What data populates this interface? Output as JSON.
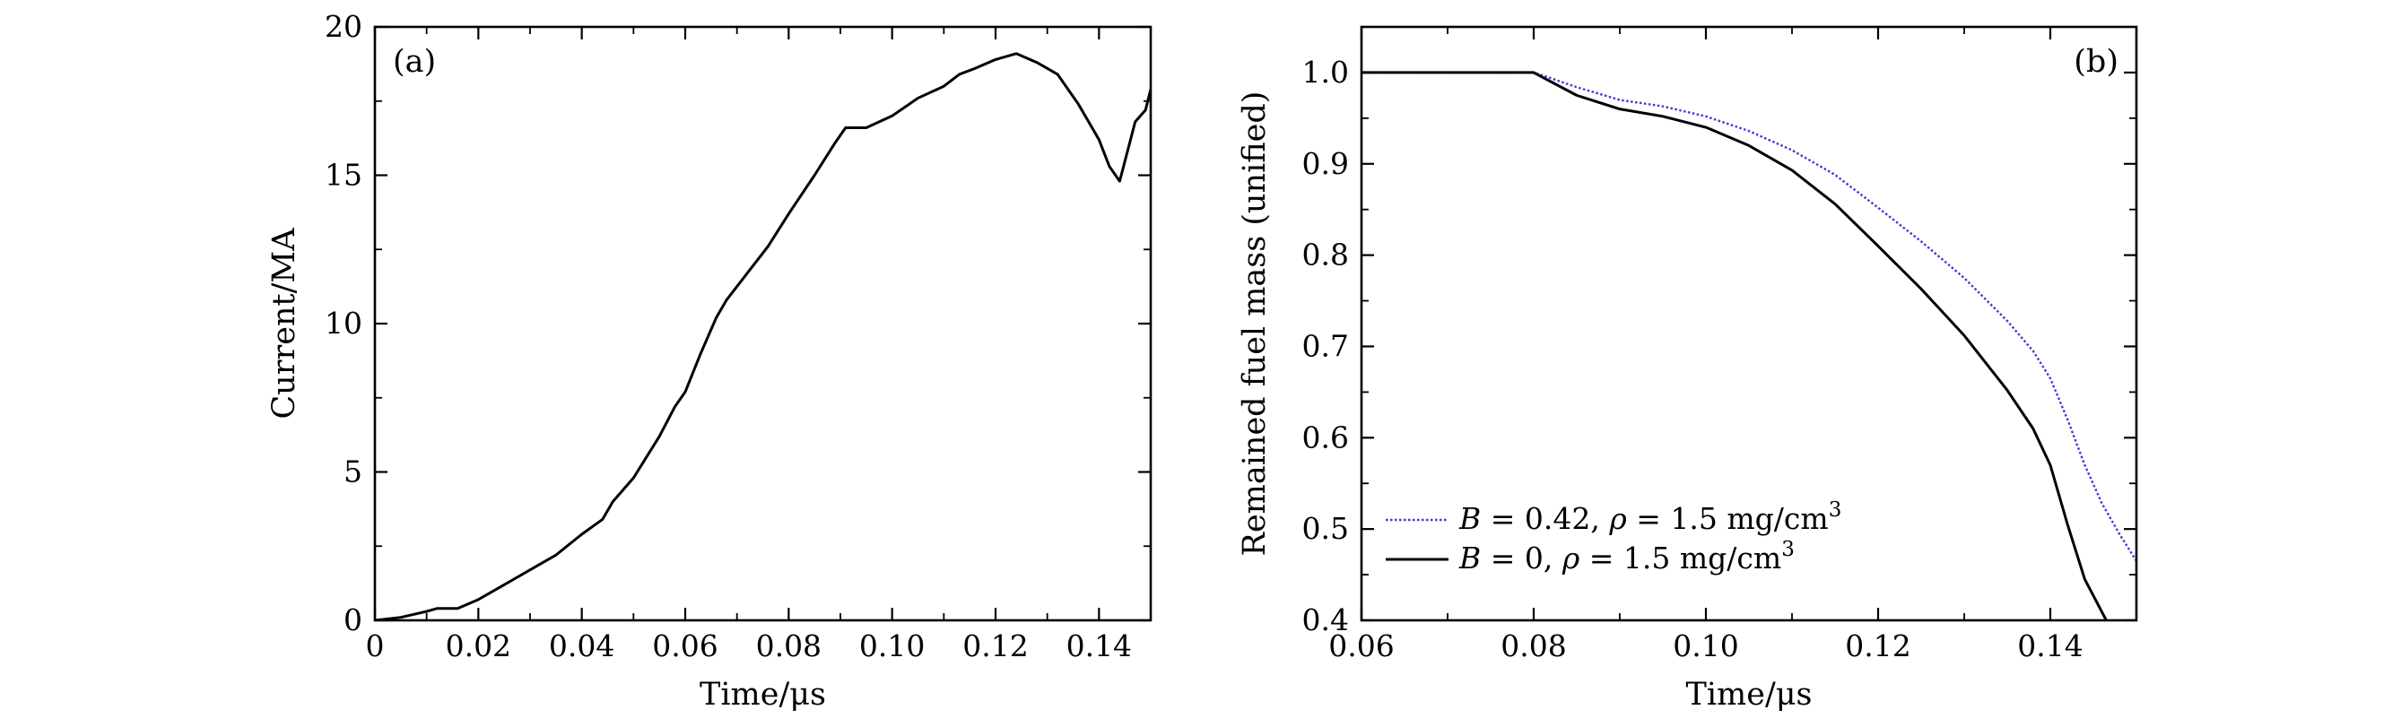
{
  "chart_data": [
    {
      "type": "line",
      "panel_label": "(a)",
      "xlabel": "Time/μs",
      "ylabel": "Current/MA",
      "xlim": [
        0,
        0.15
      ],
      "ylim": [
        0,
        20
      ],
      "xticks": [
        0,
        0.02,
        0.04,
        0.06,
        0.08,
        0.1,
        0.12,
        0.14
      ],
      "xtick_labels": [
        "0",
        "0.02",
        "0.04",
        "0.06",
        "0.08",
        "0.10",
        "0.12",
        "0.14"
      ],
      "yticks": [
        0,
        5,
        10,
        15,
        20
      ],
      "ytick_labels": [
        "0",
        "5",
        "10",
        "15",
        "20"
      ],
      "series": [
        {
          "color": "#000000",
          "style": "solid",
          "x": [
            0,
            0.005,
            0.01,
            0.012,
            0.016,
            0.02,
            0.025,
            0.03,
            0.035,
            0.04,
            0.044,
            0.046,
            0.05,
            0.055,
            0.058,
            0.06,
            0.063,
            0.066,
            0.068,
            0.072,
            0.076,
            0.08,
            0.085,
            0.089,
            0.091,
            0.095,
            0.1,
            0.105,
            0.11,
            0.113,
            0.116,
            0.12,
            0.124,
            0.128,
            0.132,
            0.136,
            0.14,
            0.142,
            0.144,
            0.147,
            0.149,
            0.15
          ],
          "y": [
            0,
            0.1,
            0.3,
            0.4,
            0.4,
            0.7,
            1.2,
            1.7,
            2.2,
            2.9,
            3.4,
            4.0,
            4.8,
            6.2,
            7.2,
            7.7,
            9.0,
            10.2,
            10.8,
            11.7,
            12.6,
            13.7,
            15.0,
            16.1,
            16.6,
            16.6,
            17.0,
            17.6,
            18.0,
            18.4,
            18.6,
            18.9,
            19.1,
            18.8,
            18.4,
            17.4,
            16.2,
            15.3,
            14.8,
            16.8,
            17.2,
            17.9
          ]
        }
      ]
    },
    {
      "type": "line",
      "panel_label": "(b)",
      "xlabel": "Time/μs",
      "ylabel": "Remained fuel mass (unified)",
      "xlim": [
        0.06,
        0.15
      ],
      "ylim": [
        0.4,
        1.05
      ],
      "xticks": [
        0.06,
        0.08,
        0.1,
        0.12,
        0.14
      ],
      "xtick_labels": [
        "0.06",
        "0.08",
        "0.10",
        "0.12",
        "0.14"
      ],
      "yticks": [
        0.4,
        0.5,
        0.6,
        0.7,
        0.8,
        0.9,
        1.0
      ],
      "ytick_labels": [
        "0.4",
        "0.5",
        "0.6",
        "0.7",
        "0.8",
        "0.9",
        "1.0"
      ],
      "legend_position": "bottom-left",
      "series": [
        {
          "legend": {
            "var1": "B",
            "mid": " = 0.42, ",
            "var2": "ρ",
            "tail": " = 1.5 mg/cm",
            "sup": "3"
          },
          "color": "#3a3ad6",
          "style": "dotted",
          "x": [
            0.06,
            0.08,
            0.081,
            0.085,
            0.09,
            0.095,
            0.1,
            0.105,
            0.11,
            0.115,
            0.12,
            0.125,
            0.13,
            0.135,
            0.138,
            0.14,
            0.142,
            0.144,
            0.146,
            0.148,
            0.15
          ],
          "y": [
            1.0,
            1.0,
            0.997,
            0.984,
            0.97,
            0.963,
            0.952,
            0.936,
            0.915,
            0.888,
            0.852,
            0.815,
            0.775,
            0.728,
            0.695,
            0.665,
            0.62,
            0.57,
            0.528,
            0.495,
            0.465
          ]
        },
        {
          "legend": {
            "var1": "B",
            "mid": " = 0, ",
            "var2": "ρ",
            "tail": " = 1.5 mg/cm",
            "sup": "3"
          },
          "color": "#000000",
          "style": "solid",
          "x": [
            0.06,
            0.08,
            0.081,
            0.085,
            0.09,
            0.095,
            0.1,
            0.105,
            0.11,
            0.115,
            0.12,
            0.125,
            0.13,
            0.135,
            0.138,
            0.14,
            0.142,
            0.144,
            0.1465
          ],
          "y": [
            1.0,
            1.0,
            0.995,
            0.975,
            0.96,
            0.952,
            0.94,
            0.92,
            0.893,
            0.856,
            0.81,
            0.763,
            0.712,
            0.652,
            0.61,
            0.57,
            0.505,
            0.445,
            0.4
          ]
        }
      ]
    }
  ]
}
